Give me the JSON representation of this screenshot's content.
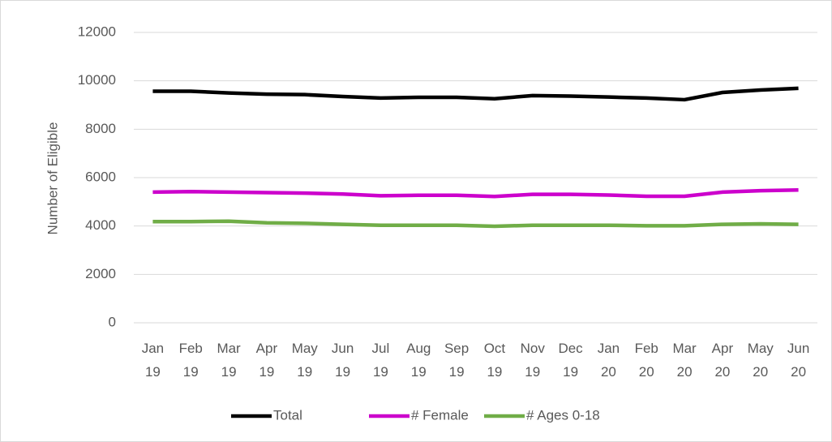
{
  "chart_data": {
    "type": "line",
    "y_label": "Number of Eligible",
    "categories": [
      "Jan 19",
      "Feb 19",
      "Mar 19",
      "Apr 19",
      "May 19",
      "Jun 19",
      "Jul 19",
      "Aug 19",
      "Sep 19",
      "Oct 19",
      "Nov 19",
      "Dec 19",
      "Jan 20",
      "Feb 20",
      "Mar 20",
      "Apr 20",
      "May 20",
      "Jun 20"
    ],
    "series": [
      {
        "name": "Total",
        "color": "#000000",
        "values": [
          9570,
          9570,
          9500,
          9450,
          9430,
          9350,
          9290,
          9320,
          9320,
          9260,
          9390,
          9370,
          9330,
          9290,
          9220,
          9520,
          9620,
          9690
        ]
      },
      {
        "name": "# Female",
        "color": "#cc00cc",
        "values": [
          5400,
          5420,
          5400,
          5380,
          5360,
          5320,
          5250,
          5270,
          5270,
          5220,
          5310,
          5310,
          5280,
          5230,
          5230,
          5400,
          5460,
          5490
        ]
      },
      {
        "name": "# Ages 0-18",
        "color": "#70ad47",
        "values": [
          4180,
          4180,
          4200,
          4130,
          4110,
          4070,
          4030,
          4030,
          4030,
          3990,
          4030,
          4030,
          4030,
          4010,
          4010,
          4070,
          4090,
          4070
        ]
      }
    ],
    "ylim": [
      0,
      12000
    ],
    "yticks": [
      0,
      2000,
      4000,
      6000,
      8000,
      10000,
      12000
    ],
    "grid": true,
    "legend": "bottom"
  }
}
